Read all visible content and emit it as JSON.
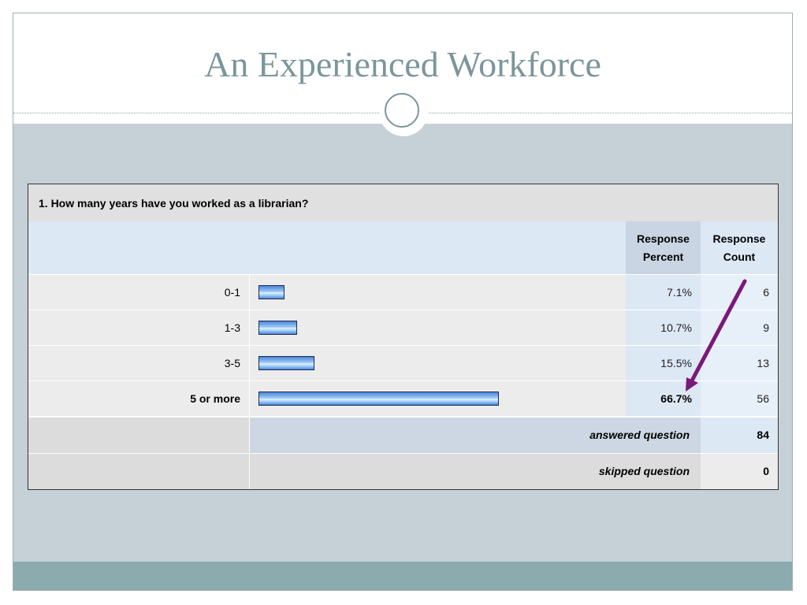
{
  "slide": {
    "title": "An Experienced Workforce"
  },
  "survey": {
    "question": "1. How many years have you worked as a librarian?",
    "headers": {
      "percent_line1": "Response",
      "percent_line2": "Percent",
      "count_line1": "Response",
      "count_line2": "Count"
    },
    "rows": [
      {
        "label": "0-1",
        "percent_text": "7.1%",
        "percent": 7.1,
        "count": "6",
        "emphasized": false
      },
      {
        "label": "1-3",
        "percent_text": "10.7%",
        "percent": 10.7,
        "count": "9",
        "emphasized": false
      },
      {
        "label": "3-5",
        "percent_text": "15.5%",
        "percent": 15.5,
        "count": "13",
        "emphasized": false
      },
      {
        "label": "5 or more",
        "percent_text": "66.7%",
        "percent": 66.7,
        "count": "56",
        "emphasized": true
      }
    ],
    "answered": {
      "label": "answered question",
      "value": "84"
    },
    "skipped": {
      "label": "skipped question",
      "value": "0"
    }
  },
  "chart_data": {
    "type": "bar",
    "orientation": "horizontal",
    "title": "1. How many years have you worked as a librarian?",
    "categories": [
      "0-1",
      "1-3",
      "3-5",
      "5 or more"
    ],
    "series": [
      {
        "name": "Response Percent",
        "values": [
          7.1,
          10.7,
          15.5,
          66.7
        ]
      },
      {
        "name": "Response Count",
        "values": [
          6,
          9,
          13,
          56
        ]
      }
    ],
    "annotations": [
      "arrow from Response Count column pointing to 66.7%"
    ]
  },
  "colors": {
    "title": "#7b969a",
    "arrow": "#7a1a78",
    "bar_border": "#1d2d54",
    "bar_fill": "#9ec9f6"
  }
}
